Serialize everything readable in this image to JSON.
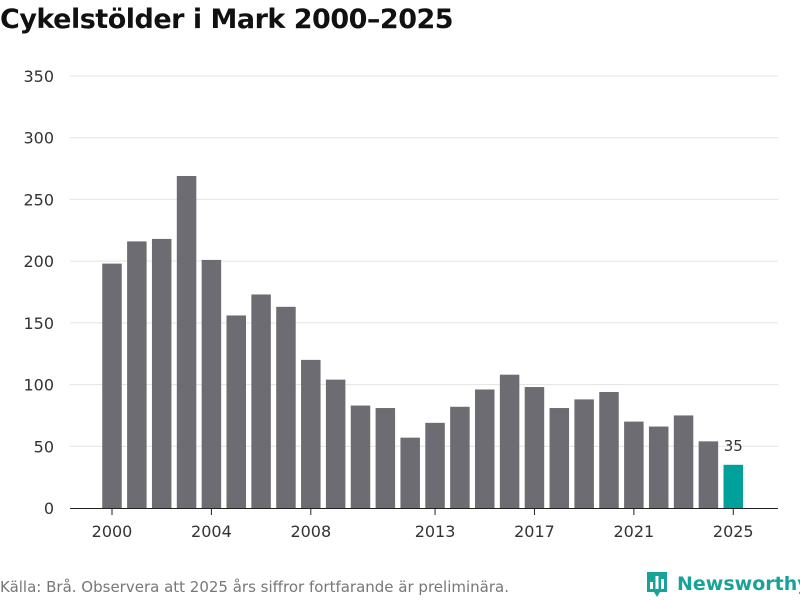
{
  "title": "Cykelstölder i Mark 2000–2025",
  "footer": {
    "source_note": "Källa: Brå. Observera att 2025 års siffror fortfarande är preliminära.",
    "brand_name": "Newsworthy"
  },
  "colors": {
    "bar": "#6d6c73",
    "highlight": "#00a19a",
    "grid": "#e3e3e3",
    "brand": "#17a398"
  },
  "chart_data": {
    "type": "bar",
    "title": "Cykelstölder i Mark 2000–2025",
    "xlabel": "",
    "ylabel": "",
    "categories": [
      "2000",
      "2001",
      "2002",
      "2003",
      "2004",
      "2005",
      "2006",
      "2007",
      "2008",
      "2009",
      "2010",
      "2011",
      "2012",
      "2013",
      "2014",
      "2015",
      "2016",
      "2017",
      "2018",
      "2019",
      "2020",
      "2021",
      "2022",
      "2023",
      "2024",
      "2025"
    ],
    "values": [
      198,
      216,
      218,
      269,
      201,
      156,
      173,
      163,
      120,
      104,
      83,
      81,
      57,
      69,
      82,
      96,
      108,
      98,
      81,
      88,
      94,
      70,
      66,
      75,
      54,
      35
    ],
    "x_tick_labels": [
      "2000",
      "2004",
      "2008",
      "2013",
      "2017",
      "2021",
      "2025"
    ],
    "y_ticks": [
      0,
      50,
      100,
      150,
      200,
      250,
      300,
      350
    ],
    "ylim": [
      0,
      350
    ],
    "grid": true,
    "legend": "none",
    "highlight_category": "2025",
    "data_labels": [
      {
        "category": "2025",
        "text": "35"
      }
    ]
  }
}
